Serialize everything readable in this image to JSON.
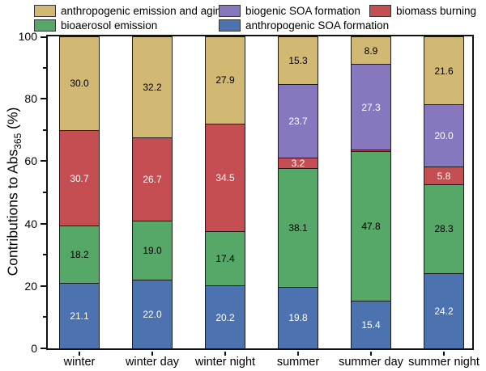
{
  "chart_data": {
    "type": "bar",
    "stacked": true,
    "ylabel": "Contributions to Abs365 (%)",
    "ylabel_prefix": "Contributions to Abs",
    "ylabel_sub": "365",
    "ylabel_suffix": " (%)",
    "ylim": [
      0,
      100
    ],
    "yticks_major": [
      0,
      20,
      40,
      60,
      80,
      100
    ],
    "yticks_minor": [
      10,
      30,
      50,
      70,
      90
    ],
    "grid": false,
    "legend_position": "top",
    "categories": [
      "winter",
      "winter day",
      "winter night",
      "summer",
      "summer day",
      "summer night"
    ],
    "series": [
      {
        "name": "anthropogenic SOA formation",
        "color": "#4c72b0",
        "label_color": "#ffffff",
        "values": [
          21.1,
          22.0,
          20.2,
          19.8,
          15.4,
          24.2
        ]
      },
      {
        "name": "bioaerosol emission",
        "color": "#55a868",
        "label_color": "#000000",
        "values": [
          18.2,
          19.0,
          17.4,
          38.1,
          47.8,
          28.3
        ]
      },
      {
        "name": "biomass burning",
        "color": "#c44e52",
        "label_color": "#ffffff",
        "values": [
          30.7,
          26.7,
          34.5,
          3.2,
          0.6,
          5.8
        ]
      },
      {
        "name": "biogenic SOA formation",
        "color": "#8677bf",
        "label_color": "#ffffff",
        "values": [
          0,
          0,
          0,
          23.7,
          27.3,
          20.0
        ]
      },
      {
        "name": "anthropogenic emission and aging",
        "color": "#d1b873",
        "label_color": "#000000",
        "values": [
          30.0,
          32.2,
          27.9,
          15.3,
          8.9,
          21.6
        ]
      }
    ]
  },
  "legend": {
    "items": [
      {
        "label": "anthropogenic emission and aging",
        "color": "#d1b873",
        "row": 0,
        "col": 0
      },
      {
        "label": "biogenic SOA formation",
        "color": "#8677bf",
        "row": 0,
        "col": 1
      },
      {
        "label": "biomass burning",
        "color": "#c44e52",
        "row": 0,
        "col": 2
      },
      {
        "label": "bioaerosol emission",
        "color": "#55a868",
        "row": 1,
        "col": 0
      },
      {
        "label": "anthropogenic SOA formation",
        "color": "#4c72b0",
        "row": 1,
        "col": 1
      }
    ]
  },
  "colors": {
    "axis": "#111111",
    "segment_border": "#1c1c1c",
    "background": "#ffffff"
  }
}
